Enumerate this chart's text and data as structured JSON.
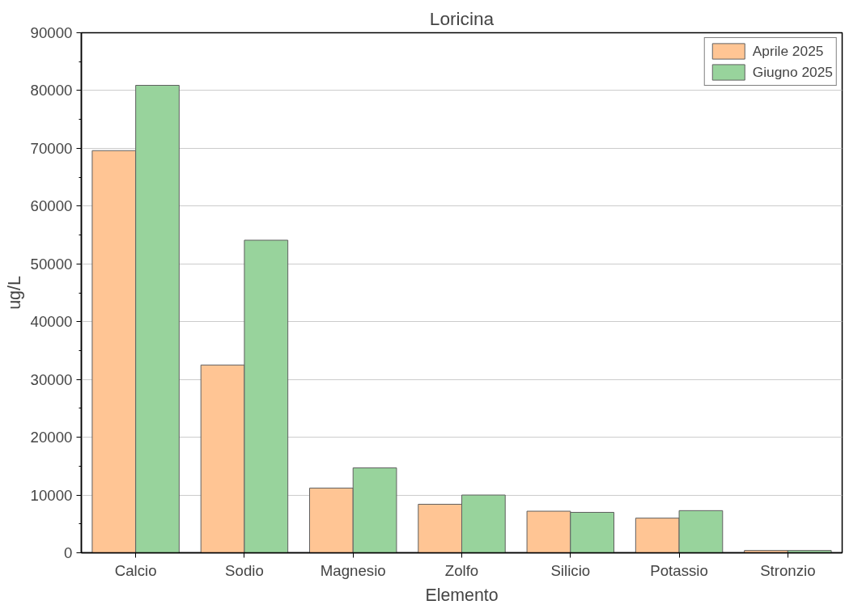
{
  "chart_data": {
    "type": "bar",
    "title": "Loricina",
    "xlabel": "Elemento",
    "ylabel": "ug/L",
    "categories": [
      "Calcio",
      "Sodio",
      "Magnesio",
      "Zolfo",
      "Silicio",
      "Potassio",
      "Stronzio"
    ],
    "series": [
      {
        "name": "Aprile 2025",
        "color": "#ffc594",
        "values": [
          69600,
          32500,
          11200,
          8400,
          7200,
          6000,
          400
        ]
      },
      {
        "name": "Giugno 2025",
        "color": "#98d39c",
        "values": [
          80900,
          54100,
          14700,
          10000,
          7000,
          7300,
          400
        ]
      }
    ],
    "ylim": [
      0,
      90000
    ],
    "yticks": [
      0,
      10000,
      20000,
      30000,
      40000,
      50000,
      60000,
      70000,
      80000,
      90000
    ],
    "grid": "y",
    "legend": "top right"
  }
}
